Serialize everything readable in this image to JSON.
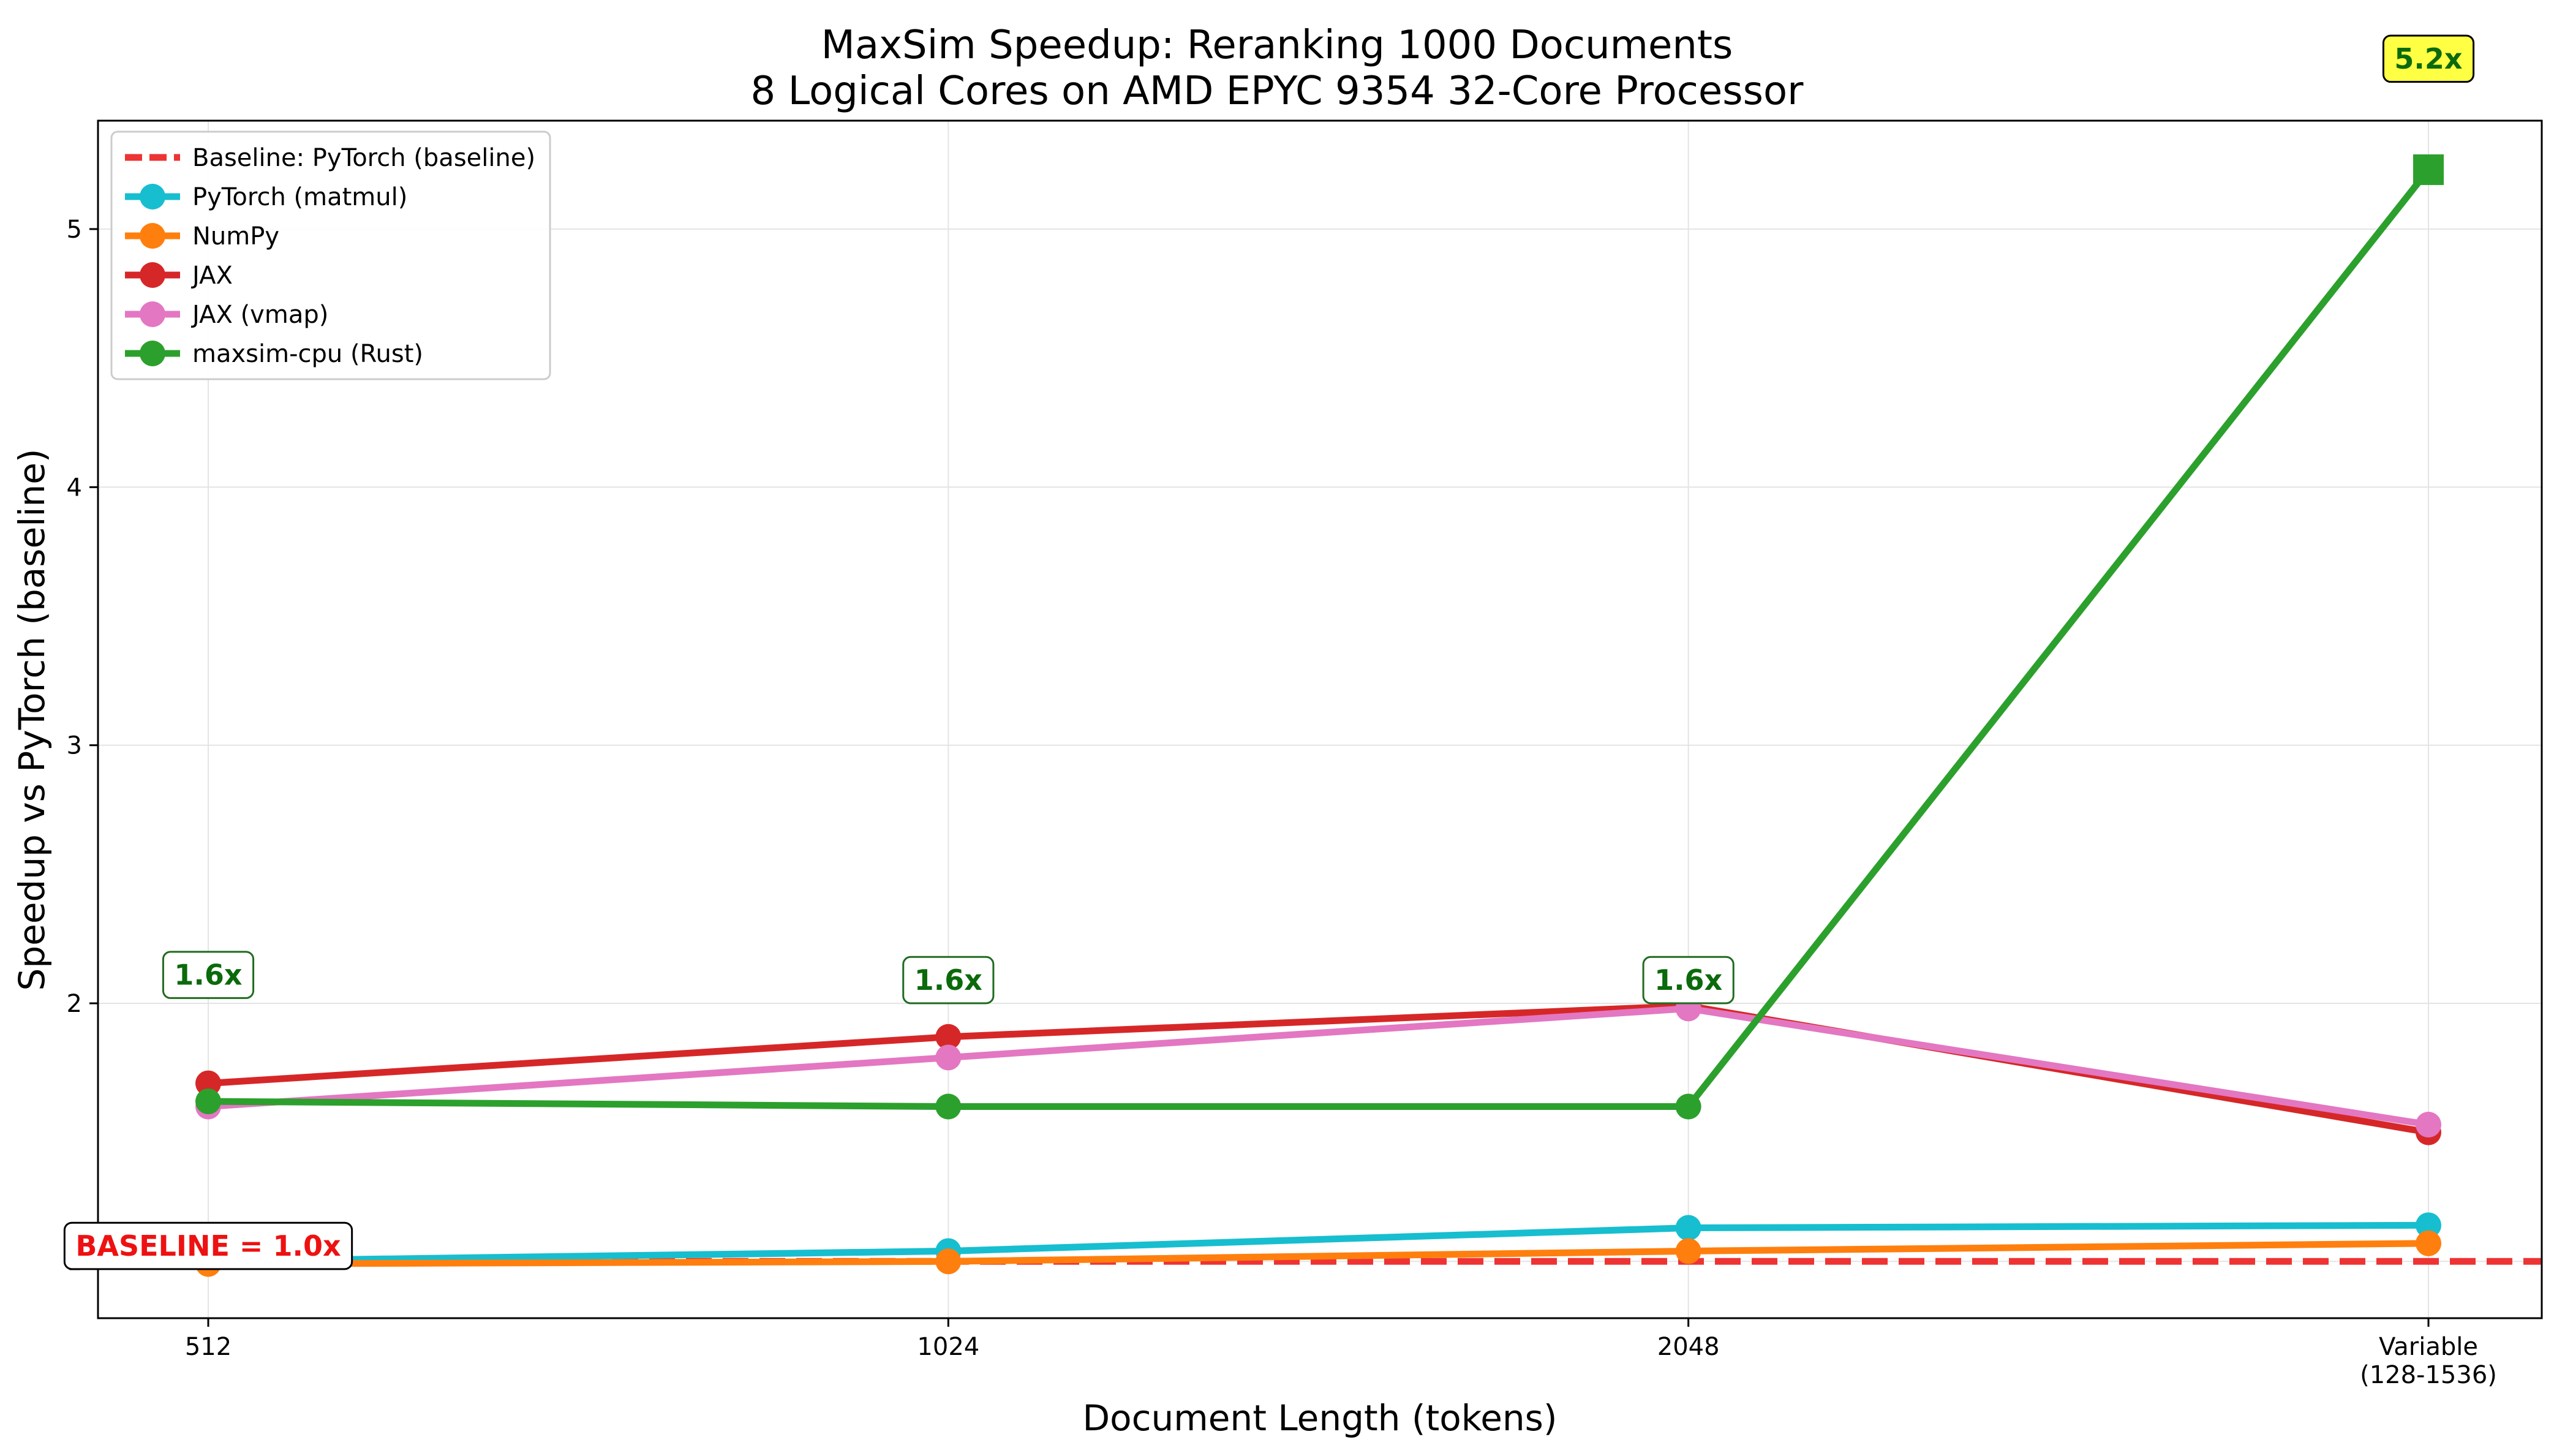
{
  "chart_data": {
    "type": "line",
    "title": "MaxSim Speedup: Reranking 1000 Documents",
    "subtitle": "8 Logical Cores on AMD EPYC 9354 32-Core Processor",
    "xlabel": "Document Length (tokens)",
    "ylabel": "Speedup vs PyTorch (baseline)",
    "categories": [
      "512",
      "1024",
      "2048",
      "Variable\n(128-1536)"
    ],
    "ylim": [
      0.78,
      5.42
    ],
    "yticks": [
      1,
      2,
      3,
      4,
      5
    ],
    "grid": true,
    "legend_position": "top-left",
    "baseline": {
      "name": "Baseline: PyTorch (baseline)",
      "value": 1.0,
      "color": "#ee3333",
      "style": "dashed"
    },
    "series": [
      {
        "name": "PyTorch (matmul)",
        "color": "#17becf",
        "marker": "circle",
        "values": [
          1.0,
          1.04,
          1.13,
          1.14
        ]
      },
      {
        "name": "NumPy",
        "color": "#ff7f0e",
        "marker": "circle",
        "values": [
          0.99,
          1.0,
          1.04,
          1.07
        ]
      },
      {
        "name": "JAX",
        "color": "#d62728",
        "marker": "circle",
        "values": [
          1.69,
          1.87,
          1.99,
          1.5
        ]
      },
      {
        "name": "JAX (vmap)",
        "color": "#e377c2",
        "marker": "circle",
        "values": [
          1.6,
          1.79,
          1.98,
          1.53
        ]
      },
      {
        "name": "maxsim-cpu (Rust)",
        "color": "#2ca02c",
        "marker": "circle",
        "last_marker": "square",
        "values": [
          1.62,
          1.6,
          1.6,
          5.23
        ]
      }
    ],
    "annotations": [
      {
        "text": "1.6x",
        "category": 0,
        "y": 2.11,
        "style": "green-box"
      },
      {
        "text": "1.6x",
        "category": 1,
        "y": 2.09,
        "style": "green-box"
      },
      {
        "text": "1.6x",
        "category": 2,
        "y": 2.09,
        "style": "green-box"
      },
      {
        "text": "5.2x",
        "category": 3,
        "y": 5.66,
        "style": "yellow-box"
      },
      {
        "text": "BASELINE = 1.0x",
        "category": 0,
        "y": 1.06,
        "style": "red-text-box"
      }
    ]
  }
}
